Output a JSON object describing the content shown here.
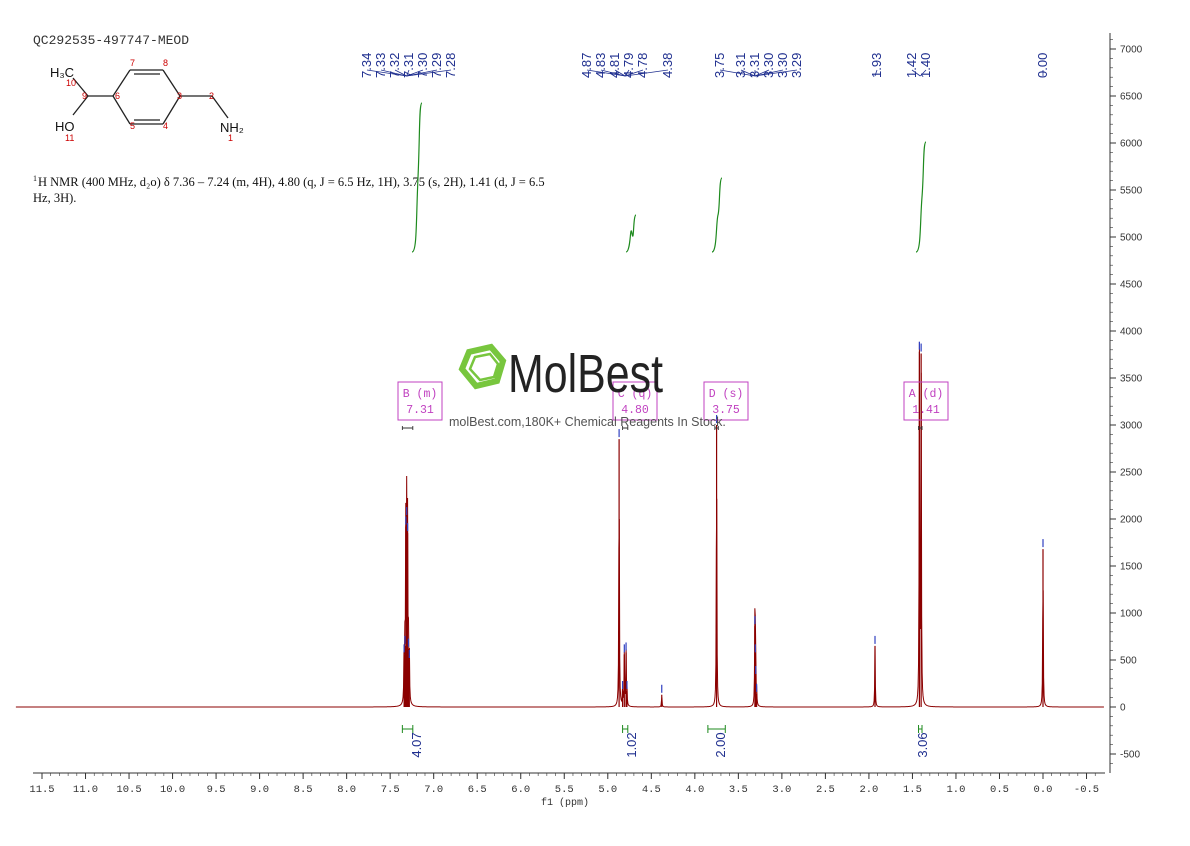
{
  "sample_id": "QC292535-497747-MEOD",
  "description": "1H NMR (400 MHz, d2o) δ 7.36 – 7.24 (m, 4H), 4.80 (q, J = 6.5 Hz, 1H), 3.75 (s, 2H), 1.41 (d, J = 6.5 Hz, 3H).",
  "description_lines": [
    "H NMR (400 MHz, d₂o) δ 7.36 – 7.24 (m, 4H), 4.80 (q, J = 6.5 Hz, 1H), 3.75 (s, 2H), 1.41 (d, J = 6.5",
    "Hz, 3H)."
  ],
  "description_superscript": "1",
  "structure": {
    "atoms": [
      {
        "label": "H₃C",
        "num": "10"
      },
      {
        "label": "",
        "num": "9"
      },
      {
        "label": "",
        "num": "6"
      },
      {
        "label": "",
        "num": "7"
      },
      {
        "label": "",
        "num": "8"
      },
      {
        "label": "",
        "num": "3"
      },
      {
        "label": "",
        "num": "2"
      },
      {
        "label": "",
        "num": "5"
      },
      {
        "label": "",
        "num": "4"
      },
      {
        "label": "HO",
        "num": "11"
      },
      {
        "label": "NH₂",
        "num": "1"
      }
    ]
  },
  "watermark": {
    "brand": "MolBest",
    "tagline": "molBest.com,180K+ Chemical Reagents In Stock."
  },
  "colors": {
    "spectrum": "#8b0000",
    "integral": "#1e8a1e",
    "peak_label": "#1f2f8f",
    "multiplet_box": "#c040c0",
    "atom_number": "#cc0000",
    "logo_green": "#6dc22e",
    "axis": "#333333"
  },
  "chart_data": {
    "type": "line",
    "title": "",
    "xlabel": "f1 (ppm)",
    "ylabel": "",
    "xlim": [
      11.8,
      -0.7
    ],
    "ylim": [
      -700,
      7200
    ],
    "x_ticks": [
      "11.5",
      "11.0",
      "10.5",
      "10.0",
      "9.5",
      "9.0",
      "8.5",
      "8.0",
      "7.5",
      "7.0",
      "6.5",
      "6.0",
      "5.5",
      "5.0",
      "4.5",
      "4.0",
      "3.5",
      "3.0",
      "2.5",
      "2.0",
      "1.5",
      "1.0",
      "0.5",
      "0.0",
      "-0.5"
    ],
    "y_ticks": [
      "7000",
      "6500",
      "6000",
      "5500",
      "5000",
      "4500",
      "4000",
      "3500",
      "3000",
      "2500",
      "2000",
      "1500",
      "1000",
      "500",
      "0",
      "-500"
    ],
    "peaks": [
      {
        "ppm": 7.34,
        "height": 560
      },
      {
        "ppm": 7.33,
        "height": 650
      },
      {
        "ppm": 7.32,
        "height": 1920
      },
      {
        "ppm": 7.31,
        "height": 2020
      },
      {
        "ppm": 7.3,
        "height": 1850
      },
      {
        "ppm": 7.29,
        "height": 620
      },
      {
        "ppm": 7.28,
        "height": 500
      },
      {
        "ppm": 4.87,
        "height": 2850
      },
      {
        "ppm": 4.83,
        "height": 170
      },
      {
        "ppm": 4.81,
        "height": 560
      },
      {
        "ppm": 4.79,
        "height": 580
      },
      {
        "ppm": 4.78,
        "height": 170
      },
      {
        "ppm": 4.38,
        "height": 130
      },
      {
        "ppm": 3.75,
        "height": 3000
      },
      {
        "ppm": 3.31,
        "height": 860
      },
      {
        "ppm": 3.305,
        "height": 560
      },
      {
        "ppm": 3.3,
        "height": 330
      },
      {
        "ppm": 3.29,
        "height": 140
      },
      {
        "ppm": 1.93,
        "height": 650
      },
      {
        "ppm": 1.42,
        "height": 3780
      },
      {
        "ppm": 1.4,
        "height": 3760
      },
      {
        "ppm": 0.0,
        "height": 1680
      }
    ],
    "peak_labels": [
      {
        "group": [
          7.34,
          7.33,
          7.32,
          7.31,
          7.3,
          7.29,
          7.28
        ],
        "labels": [
          "7.34",
          "7.33",
          "7.32",
          "7.31",
          "7.30",
          "7.29",
          "7.28"
        ]
      },
      {
        "group": [
          4.87,
          4.83,
          4.81,
          4.79,
          4.78,
          4.38
        ],
        "labels": [
          "4.87",
          "4.83",
          "4.81",
          "4.79",
          "4.78",
          "4.38"
        ]
      },
      {
        "group": [
          3.75,
          3.31,
          3.31,
          3.3,
          3.3,
          3.29
        ],
        "labels": [
          "3.75",
          "3.31",
          "3.31",
          "3.30",
          "3.30",
          "3.29"
        ]
      },
      {
        "group": [
          1.93
        ],
        "labels": [
          "1.93"
        ]
      },
      {
        "group": [
          1.42,
          1.4
        ],
        "labels": [
          "1.42",
          "1.40"
        ]
      },
      {
        "group": [
          0.0
        ],
        "labels": [
          "0.00"
        ]
      }
    ],
    "multiplets": [
      {
        "letter": "B",
        "type": "(m)",
        "shift": "7.31",
        "ppm": 7.31,
        "from": 7.36,
        "to": 7.24
      },
      {
        "letter": "C",
        "type": "(q)",
        "shift": "4.80",
        "ppm": 4.8,
        "from": 4.83,
        "to": 4.77
      },
      {
        "letter": "D",
        "type": "(s)",
        "shift": "3.75",
        "ppm": 3.75,
        "from": 3.77,
        "to": 3.73
      },
      {
        "letter": "A",
        "type": "(d)",
        "shift": "1.41",
        "ppm": 1.41,
        "from": 1.43,
        "to": 1.39
      }
    ],
    "integrals": [
      {
        "value": "4.07",
        "from": 7.36,
        "to": 7.24
      },
      {
        "value": "1.02",
        "from": 4.83,
        "to": 4.77
      },
      {
        "value": "2.00",
        "from": 3.85,
        "to": 3.65
      },
      {
        "value": "3.06",
        "from": 1.43,
        "to": 1.39
      }
    ]
  }
}
